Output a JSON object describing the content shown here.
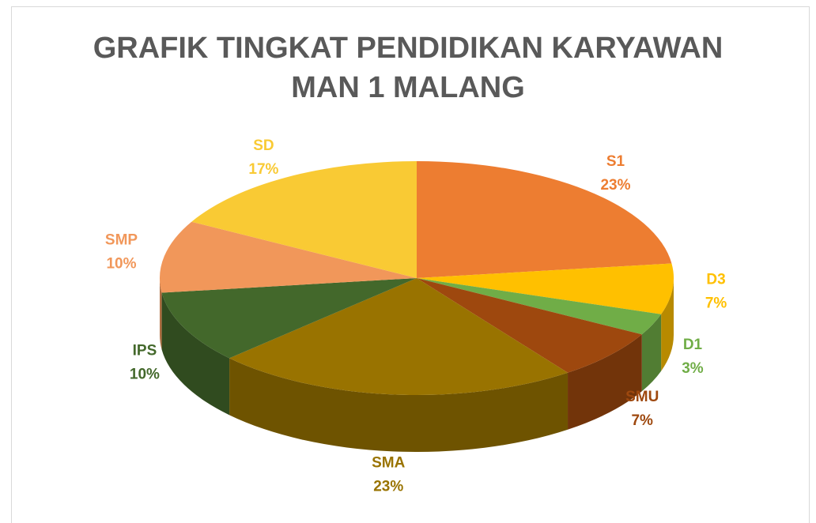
{
  "chart_data": {
    "type": "pie",
    "title": "GRAFIK TINGKAT PENDIDIKAN KARYAWAN MAN 1 MALANG",
    "categories": [
      "S1",
      "D3",
      "D1",
      "SMU",
      "SMA",
      "IPS",
      "SMP",
      "SD"
    ],
    "values": [
      23,
      7,
      3,
      7,
      23,
      10,
      10,
      17
    ],
    "value_labels": [
      "23%",
      "7%",
      "3%",
      "7%",
      "23%",
      "10%",
      "10%",
      "17%"
    ],
    "colors": [
      "#ED7D31",
      "#FFC000",
      "#70AD47",
      "#9E480E",
      "#997300",
      "#43682B",
      "#F1975A",
      "#F9CA34"
    ]
  }
}
